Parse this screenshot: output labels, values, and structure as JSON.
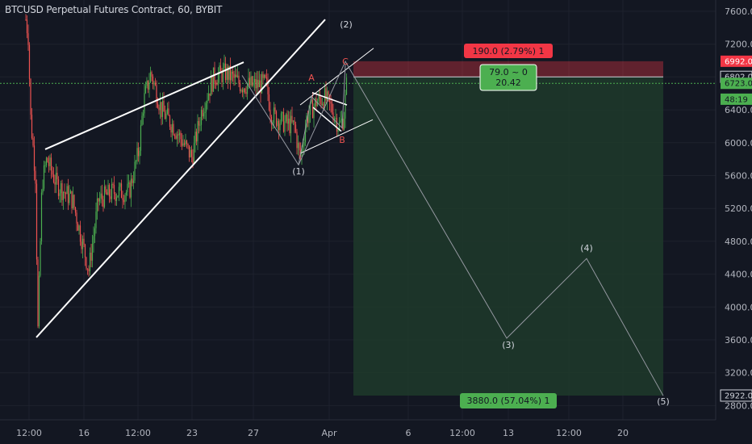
{
  "header": {
    "title": "BTCUSD Perpetual Futures Contract, 60, BYBIT"
  },
  "colors": {
    "background": "#131722",
    "up": "#4caf50",
    "down": "#ef5350",
    "trendline": "#ffffff",
    "wave": "#9598a1",
    "stop_zone": "#f23645",
    "target_zone": "#1e3a2a",
    "price_line": "#26a69a"
  },
  "chart_data": {
    "type": "candlestick",
    "title": "BTCUSD Perpetual Futures Contract, 60, BYBIT",
    "ylim": [
      2760,
      7700
    ],
    "y_ticks": [
      "7600.0",
      "7200.0",
      "6802.0",
      "6400.0",
      "6000.0",
      "5600.0",
      "5200.0",
      "4800.0",
      "4400.0",
      "4000.0",
      "3600.0",
      "3200.0",
      "2800.0"
    ],
    "x_ticks": [
      "12:00",
      "16",
      "12:00",
      "23",
      "27",
      "Apr",
      "6",
      "12:00",
      "13",
      "12:00",
      "20"
    ],
    "price_tags": [
      {
        "label": "6992.0",
        "value": 6992,
        "style": "stop"
      },
      {
        "label": "6802.0",
        "value": 6802,
        "style": "entry"
      },
      {
        "label": "6723.0",
        "value": 6723,
        "style": "last"
      },
      {
        "label": "48:19",
        "value": 6530,
        "style": "countdown"
      },
      {
        "label": "2922.0",
        "value": 2922,
        "style": "target"
      }
    ],
    "last_price": 6723,
    "short_position": {
      "entry": 6802,
      "stop": 6992,
      "target": 2922,
      "stop_label": "190.0 (2.79%) 1",
      "ratio_label": "79.0 ~ 0",
      "ratio_value": "20.42",
      "target_label": "3880.0 (57.04%) 1"
    },
    "elliott_wave": [
      {
        "label": "(1)",
        "value": 5730
      },
      {
        "label": "(2)",
        "value": 6990
      },
      {
        "label": "(3)",
        "value": 3620
      },
      {
        "label": "(4)",
        "value": 4590
      },
      {
        "label": "(5)",
        "value": 2920
      }
    ],
    "abc_correction": [
      {
        "label": "A",
        "value": 6600
      },
      {
        "label": "B",
        "value": 6160
      },
      {
        "label": "C",
        "value": 6950
      }
    ]
  }
}
